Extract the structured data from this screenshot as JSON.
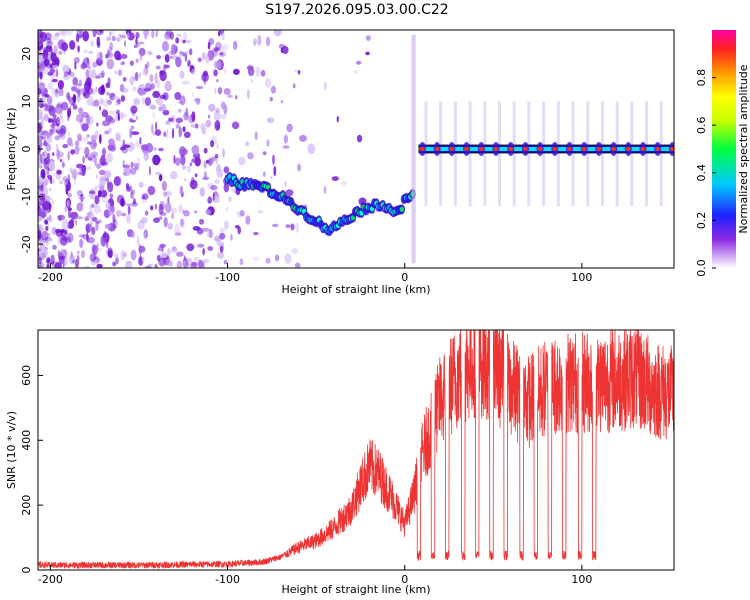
{
  "title": "S197.2026.095.03.00.C22",
  "chart_data": [
    {
      "type": "heatmap",
      "name": "spectrogram",
      "xlabel": "Height of straight line (km)",
      "ylabel": "Frequency (Hz)",
      "xlim": [
        -207,
        152
      ],
      "ylim": [
        -25,
        25
      ],
      "xticks": [
        -200,
        -100,
        0,
        100
      ],
      "yticks": [
        -20,
        -10,
        0,
        10,
        20
      ],
      "ridge": {
        "x": [
          -100,
          -95,
          -90,
          -85,
          -80,
          -75,
          -70,
          -65,
          -60,
          -55,
          -50,
          -45,
          -42,
          -38,
          -35,
          -30,
          -25,
          -20,
          -15,
          -10,
          -5,
          -2,
          0,
          2,
          5
        ],
        "freq": [
          -6,
          -7,
          -7.5,
          -7.5,
          -8,
          -9,
          -10,
          -11,
          -12.5,
          -14,
          -15,
          -16.5,
          -17,
          -16,
          -15,
          -14,
          -13,
          -12,
          -12,
          -12,
          -13,
          -13,
          -10,
          -10,
          -10
        ]
      },
      "line": {
        "x": [
          8,
          152
        ],
        "freq": 0
      },
      "colorbar": {
        "label": "Normalized spectral amplitude",
        "ticks": [
          0.0,
          0.2,
          0.4,
          0.6,
          0.8
        ],
        "range": [
          0,
          1
        ]
      }
    },
    {
      "type": "line",
      "name": "snr",
      "xlabel": "Height of straight line (km)",
      "ylabel": "SNR (10 * v/v)",
      "xlim": [
        -207,
        152
      ],
      "ylim": [
        0,
        740
      ],
      "xticks": [
        -200,
        -100,
        0,
        100
      ],
      "yticks": [
        0,
        200,
        400,
        600
      ],
      "color": "#ee3333",
      "series_envelope": {
        "x": [
          -207,
          -150,
          -100,
          -80,
          -70,
          -60,
          -50,
          -40,
          -30,
          -25,
          -20,
          -15,
          -10,
          -5,
          0,
          5,
          10,
          15,
          20,
          30,
          40,
          50,
          60,
          70,
          80,
          90,
          100,
          110,
          120,
          130,
          140,
          152
        ],
        "mean": [
          15,
          15,
          18,
          25,
          40,
          70,
          90,
          130,
          190,
          260,
          320,
          300,
          250,
          200,
          140,
          230,
          360,
          440,
          520,
          600,
          650,
          630,
          560,
          520,
          560,
          580,
          580,
          580,
          590,
          600,
          560,
          540
        ]
      },
      "dropouts_x": [
        8,
        16,
        24,
        33,
        41,
        49,
        57,
        66,
        74,
        82,
        90,
        99,
        107
      ],
      "dropout_level": 45
    }
  ]
}
